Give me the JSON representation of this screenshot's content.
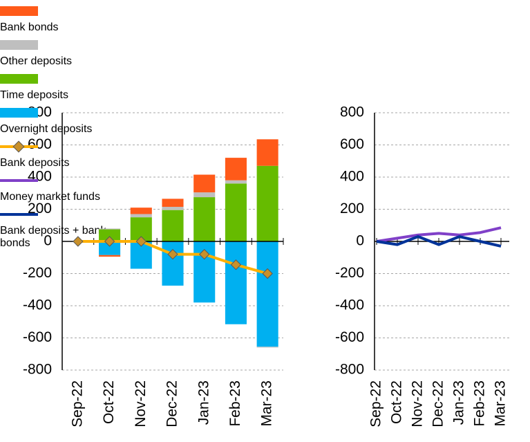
{
  "chart_data": [
    {
      "type": "bar",
      "stacked": true,
      "categories": [
        "Sep-22",
        "Oct-22",
        "Nov-22",
        "Dec-22",
        "Jan-23",
        "Feb-23",
        "Mar-23"
      ],
      "ylim": [
        -800,
        800
      ],
      "yticks": [
        -800,
        -600,
        -400,
        -200,
        0,
        200,
        400,
        600,
        800
      ],
      "grid": true,
      "series": [
        {
          "name": "Bank bonds",
          "color": "#ff5a19",
          "values": [
            0,
            -10,
            40,
            50,
            110,
            140,
            165
          ]
        },
        {
          "name": "Other deposits",
          "color": "#bfbfbf",
          "values": [
            0,
            5,
            20,
            20,
            30,
            20,
            -5
          ]
        },
        {
          "name": "Time deposits",
          "color": "#66bb00",
          "values": [
            0,
            75,
            150,
            195,
            275,
            360,
            470
          ]
        },
        {
          "name": "Overnight deposits",
          "color": "#00b0f0",
          "values": [
            0,
            -85,
            -170,
            -275,
            -380,
            -515,
            -655
          ]
        },
        {
          "name": "Bank deposits",
          "color": "#ffb000",
          "type": "line",
          "marker": "diamond",
          "marker_color": "#c8902a",
          "values": [
            0,
            0,
            0,
            -80,
            -80,
            -145,
            -200
          ]
        }
      ]
    },
    {
      "type": "line",
      "categories": [
        "Sep-22",
        "Oct-22",
        "Nov-22",
        "Dec-22",
        "Jan-23",
        "Feb-23",
        "Mar-23"
      ],
      "ylim": [
        -800,
        800
      ],
      "yticks": [
        -800,
        -600,
        -400,
        -200,
        0,
        200,
        400,
        600,
        800
      ],
      "grid": true,
      "series": [
        {
          "name": "Money market funds",
          "color": "#8040c8",
          "values": [
            0,
            20,
            40,
            50,
            40,
            55,
            85
          ]
        },
        {
          "name": "Bank deposits + bank bonds",
          "color": "#003399",
          "values": [
            0,
            -20,
            30,
            -20,
            30,
            0,
            -30
          ]
        }
      ]
    }
  ]
}
